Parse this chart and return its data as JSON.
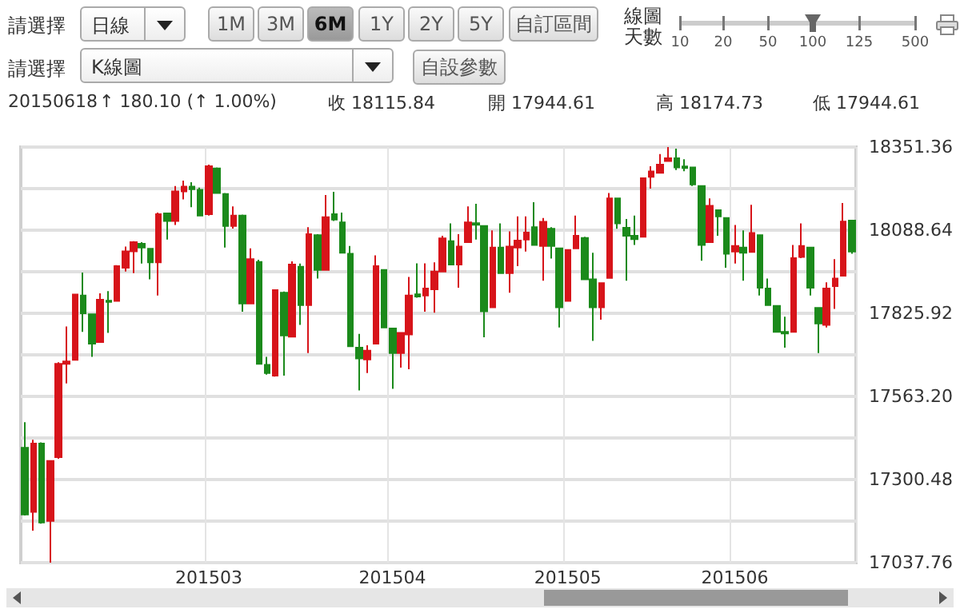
{
  "chart_data": {
    "type": "candlestick",
    "categories": [
      null,
      null,
      null,
      null,
      null,
      null,
      null,
      null,
      null,
      null,
      null,
      null,
      null,
      null,
      null,
      null,
      null,
      null,
      null,
      null,
      null,
      null,
      "201503",
      null,
      null,
      null,
      null,
      null,
      null,
      null,
      null,
      null,
      null,
      null,
      null,
      null,
      null,
      null,
      null,
      null,
      null,
      null,
      null,
      null,
      "201504",
      null,
      null,
      null,
      null,
      null,
      null,
      null,
      null,
      null,
      null,
      null,
      null,
      null,
      null,
      null,
      null,
      null,
      null,
      null,
      null,
      "201505",
      null,
      null,
      null,
      null,
      null,
      null,
      null,
      null,
      null,
      null,
      null,
      null,
      null,
      null,
      null,
      null,
      null,
      null,
      null,
      "201506",
      null,
      null,
      null,
      null,
      null,
      null,
      null,
      null,
      null,
      null,
      null,
      null,
      null,
      null
    ],
    "ohlc": [
      [
        17401,
        17482,
        17187,
        17190
      ],
      [
        17198,
        17426,
        17139,
        17414
      ],
      [
        17414,
        17418,
        17161,
        17165
      ],
      [
        17170,
        17362,
        17037.76,
        17359
      ],
      [
        17371,
        17671,
        17366,
        17666
      ],
      [
        17666,
        17784,
        17604,
        17674
      ],
      [
        17679,
        17887,
        17679,
        17885
      ],
      [
        17882,
        17955,
        17767,
        17826
      ],
      [
        17823,
        17825,
        17688,
        17730
      ],
      [
        17735,
        17889,
        17735,
        17869
      ],
      [
        17866,
        17896,
        17764,
        17862
      ],
      [
        17865,
        17978,
        17865,
        17975
      ],
      [
        17970,
        18037,
        17958,
        18022
      ],
      [
        18022,
        18054,
        17953,
        18051
      ],
      [
        18046,
        18051,
        17983,
        18034
      ],
      [
        18030,
        18032,
        17933,
        17987
      ],
      [
        17987,
        18144,
        17882,
        18139
      ],
      [
        18142,
        18142,
        18059,
        18118
      ],
      [
        18118,
        18228,
        18105,
        18211
      ],
      [
        18211,
        18245,
        18186,
        18226
      ],
      [
        18226,
        18240,
        18161,
        18218
      ],
      [
        18216,
        18223,
        18132,
        18135
      ],
      [
        18139,
        18296,
        18135,
        18291
      ],
      [
        18284,
        18287,
        18204,
        18206
      ],
      [
        18203,
        18206,
        18034,
        18102
      ],
      [
        18102,
        18164,
        18094,
        18135
      ],
      [
        18135,
        18138,
        17831,
        17857
      ],
      [
        17857,
        18031,
        17857,
        17997
      ],
      [
        17988,
        17995,
        17666,
        17666
      ],
      [
        17663,
        17688,
        17632,
        17637
      ],
      [
        17629,
        17899,
        17626,
        17899
      ],
      [
        17891,
        17895,
        17629,
        17756
      ],
      [
        17752,
        17990,
        17752,
        17980
      ],
      [
        17973,
        17983,
        17789,
        17852
      ],
      [
        17852,
        18098,
        17700,
        18076
      ],
      [
        18073,
        18076,
        17936,
        17963
      ],
      [
        17963,
        18200,
        17963,
        18130
      ],
      [
        18139,
        18210,
        18118,
        18122
      ],
      [
        18113,
        18144,
        18017,
        18017
      ],
      [
        18014,
        18039,
        17722,
        17722
      ],
      [
        17717,
        17761,
        17582,
        17683
      ],
      [
        17680,
        17725,
        17637,
        17708
      ],
      [
        17730,
        18009,
        17730,
        17975
      ],
      [
        17963,
        17963,
        17781,
        17781
      ],
      [
        17778,
        17780,
        17587,
        17700
      ],
      [
        17700,
        17764,
        17654,
        17764
      ],
      [
        17759,
        17941,
        17649,
        17882
      ],
      [
        17886,
        17984,
        17875,
        17879
      ],
      [
        17882,
        17984,
        17831,
        17904
      ],
      [
        17902,
        17987,
        17828,
        17958
      ],
      [
        17958,
        18071,
        17958,
        18063
      ],
      [
        18054,
        18110,
        17980,
        17980
      ],
      [
        17980,
        18076,
        17907,
        18037
      ],
      [
        18051,
        18164,
        18051,
        18113
      ],
      [
        18111,
        18172,
        18059,
        18106
      ],
      [
        18102,
        18102,
        17750,
        17832
      ],
      [
        17845,
        18088,
        17845,
        18034
      ],
      [
        18034,
        18110,
        17953,
        17953
      ],
      [
        17953,
        18085,
        17891,
        18037
      ],
      [
        18034,
        18132,
        17975,
        18056
      ],
      [
        18059,
        18132,
        18021,
        18081
      ],
      [
        18098,
        18177,
        18042,
        18042
      ],
      [
        18039,
        18127,
        17929,
        18115
      ],
      [
        18093,
        18098,
        17999,
        18039
      ],
      [
        18031,
        18034,
        17781,
        17845
      ],
      [
        17865,
        18026,
        17865,
        18026
      ],
      [
        18031,
        18135,
        18031,
        18071
      ],
      [
        18064,
        18068,
        17933,
        17933
      ],
      [
        17933,
        18017,
        17739,
        17845
      ],
      [
        17845,
        17921,
        17806,
        17921
      ],
      [
        17938,
        18206,
        17938,
        18189
      ],
      [
        18189,
        18189,
        18093,
        18110
      ],
      [
        18096,
        18124,
        17929,
        18071
      ],
      [
        18071,
        18135,
        18042,
        18060
      ],
      [
        18068,
        18253,
        18068,
        18253
      ],
      [
        18257,
        18291,
        18220,
        18274
      ],
      [
        18270,
        18329,
        18270,
        18296
      ],
      [
        18307,
        18351.36,
        18305,
        18316
      ],
      [
        18316,
        18346,
        18279,
        18287
      ],
      [
        18290,
        18313,
        18275,
        18285
      ],
      [
        18287,
        18287,
        18228,
        18233
      ],
      [
        18228,
        18228,
        17992,
        18042
      ],
      [
        18051,
        18189,
        18051,
        18166
      ],
      [
        18152,
        18152,
        18071,
        18132
      ],
      [
        18127,
        18127,
        17970,
        18014
      ],
      [
        18021,
        18105,
        17983,
        18039
      ],
      [
        18034,
        18088,
        17929,
        18017
      ],
      [
        18020,
        18169,
        18020,
        18080
      ],
      [
        18073,
        18073,
        17882,
        17907
      ],
      [
        17904,
        17936,
        17852,
        17852
      ],
      [
        17849,
        17849,
        17767,
        17767
      ],
      [
        17767,
        17815,
        17717,
        17762
      ],
      [
        17767,
        18042,
        17767,
        18000
      ],
      [
        18004,
        18110,
        18000,
        18039
      ],
      [
        18034,
        18034,
        17882,
        17907
      ],
      [
        17843,
        17843,
        17700,
        17794
      ],
      [
        17789,
        17924,
        17781,
        17904
      ],
      [
        17912,
        17997,
        17840,
        17936
      ],
      [
        17944.61,
        18174.73,
        17944.61,
        18115.84
      ],
      [
        18119,
        18119,
        18014,
        18021
      ]
    ],
    "colors": [
      "#1b8a1b",
      "#d7141a",
      "#1b8a1b",
      "#d7141a",
      "#d7141a",
      "#d7141a",
      "#d7141a",
      "#1b8a1b",
      "#1b8a1b",
      "#d7141a",
      "#1b8a1b",
      "#d7141a",
      "#d7141a",
      "#d7141a",
      "#1b8a1b",
      "#1b8a1b",
      "#d7141a",
      "#1b8a1b",
      "#d7141a",
      "#d7141a",
      "#1b8a1b",
      "#1b8a1b",
      "#d7141a",
      "#1b8a1b",
      "#1b8a1b",
      "#d7141a",
      "#1b8a1b",
      "#d7141a",
      "#1b8a1b",
      "#1b8a1b",
      "#d7141a",
      "#1b8a1b",
      "#d7141a",
      "#1b8a1b",
      "#d7141a",
      "#1b8a1b",
      "#d7141a",
      "#1b8a1b",
      "#1b8a1b",
      "#1b8a1b",
      "#1b8a1b",
      "#d7141a",
      "#d7141a",
      "#1b8a1b",
      "#1b8a1b",
      "#d7141a",
      "#d7141a",
      "#1b8a1b",
      "#d7141a",
      "#d7141a",
      "#d7141a",
      "#1b8a1b",
      "#d7141a",
      "#d7141a",
      "#1b8a1b",
      "#1b8a1b",
      "#d7141a",
      "#1b8a1b",
      "#d7141a",
      "#d7141a",
      "#d7141a",
      "#1b8a1b",
      "#d7141a",
      "#1b8a1b",
      "#1b8a1b",
      "#d7141a",
      "#d7141a",
      "#1b8a1b",
      "#1b8a1b",
      "#d7141a",
      "#d7141a",
      "#1b8a1b",
      "#1b8a1b",
      "#1b8a1b",
      "#d7141a",
      "#d7141a",
      "#d7141a",
      "#d7141a",
      "#1b8a1b",
      "#1b8a1b",
      "#1b8a1b",
      "#1b8a1b",
      "#d7141a",
      "#1b8a1b",
      "#1b8a1b",
      "#d7141a",
      "#1b8a1b",
      "#d7141a",
      "#1b8a1b",
      "#1b8a1b",
      "#1b8a1b",
      "#1b8a1b",
      "#d7141a",
      "#d7141a",
      "#1b8a1b",
      "#1b8a1b",
      "#d7141a",
      "#d7141a",
      "#d7141a",
      "#1b8a1b"
    ],
    "ylim": [
      17037.76,
      18351.36
    ],
    "yticks": [
      17037.76,
      {
        "value": 17169.12,
        "label": null
      },
      17300.48,
      {
        "value": 17431.84,
        "label": null
      },
      {
        "value": 17563.2,
        "label": "17563.20"
      },
      {
        "value": 17694.56,
        "label": null
      },
      17825.92,
      {
        "value": 17957.28,
        "label": null
      },
      18088.64,
      {
        "value": 18220,
        "label": null
      },
      18351.36
    ],
    "grid": true,
    "annotations": [
      "請選擇",
      "日線",
      "1M",
      "3M",
      "6M",
      "1Y",
      "2Y",
      "5Y",
      "自訂區間",
      "線圖天數",
      "10",
      "20",
      "50",
      "100",
      "125",
      "500",
      "請選擇",
      "K線圖",
      "自設參數",
      "20150618",
      "↑ 180.10 (↑ 1.00%)",
      "收 18115.84",
      "開 17944.61",
      "高 18174.73",
      "低 17944.61"
    ]
  }
}
